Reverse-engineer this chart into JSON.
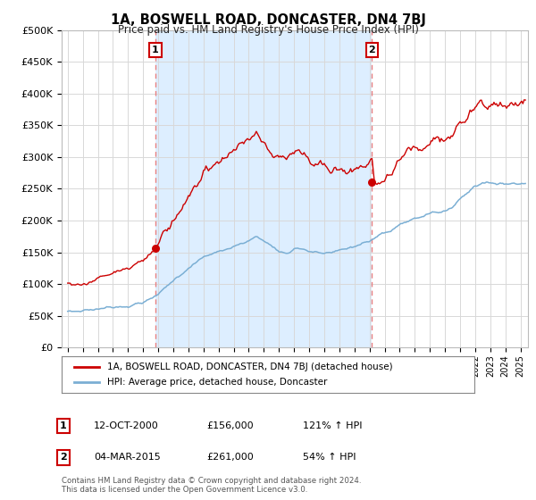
{
  "title": "1A, BOSWELL ROAD, DONCASTER, DN4 7BJ",
  "subtitle": "Price paid vs. HM Land Registry's House Price Index (HPI)",
  "ylabel_ticks": [
    "£0",
    "£50K",
    "£100K",
    "£150K",
    "£200K",
    "£250K",
    "£300K",
    "£350K",
    "£400K",
    "£450K",
    "£500K"
  ],
  "ylim": [
    0,
    500000
  ],
  "xlim_start": 1994.6,
  "xlim_end": 2025.5,
  "marker1_x": 2000.79,
  "marker1_y": 156000,
  "marker1_label": "1",
  "marker1_date": "12-OCT-2000",
  "marker1_price": "£156,000",
  "marker1_hpi": "121% ↑ HPI",
  "marker2_x": 2015.17,
  "marker2_y": 261000,
  "marker2_label": "2",
  "marker2_date": "04-MAR-2015",
  "marker2_price": "£261,000",
  "marker2_hpi": "54% ↑ HPI",
  "legend_line1": "1A, BOSWELL ROAD, DONCASTER, DN4 7BJ (detached house)",
  "legend_line2": "HPI: Average price, detached house, Doncaster",
  "footer": "Contains HM Land Registry data © Crown copyright and database right 2024.\nThis data is licensed under the Open Government Licence v3.0.",
  "property_color": "#cc0000",
  "hpi_color": "#7bafd4",
  "marker_box_color": "#cc0000",
  "vline_color": "#e88080",
  "fill_color": "#ddeeff",
  "background_color": "#ffffff",
  "grid_color": "#d8d8d8"
}
